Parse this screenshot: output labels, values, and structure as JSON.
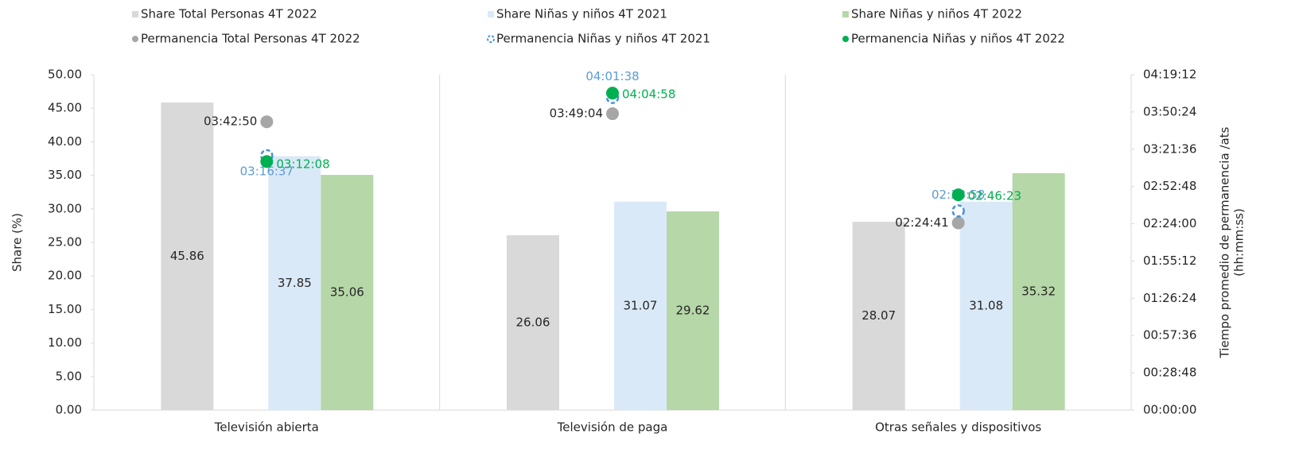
{
  "chart_data": {
    "type": "bar",
    "categories": [
      "Televisión abierta",
      "Televisión de paga",
      "Otras señales y dispositivos"
    ],
    "series": [
      {
        "name": "Share Total Personas 4T 2022",
        "type": "bar",
        "color": "#d9d9d9",
        "values": [
          45.86,
          26.06,
          28.07
        ]
      },
      {
        "name": "Share Niñas y niños 4T 2021",
        "type": "bar",
        "color": "#dae9f7",
        "values": [
          37.85,
          31.07,
          31.08
        ]
      },
      {
        "name": "Share Niñas y niños 4T 2022",
        "type": "bar",
        "color": "#b6d7a8",
        "values": [
          35.06,
          29.62,
          35.32
        ]
      },
      {
        "name": "Permanencia Total Personas 4T 2022",
        "type": "scatter",
        "axis": "y2",
        "color": "#a6a6a6",
        "label_color": "#262626",
        "values": [
          13370,
          13744,
          8681
        ],
        "value_labels": [
          "03:42:50",
          "03:49:04",
          "02:24:41"
        ]
      },
      {
        "name": "Permanencia Niñas y niños 4T 2021",
        "type": "scatter",
        "axis": "y2",
        "color": "#4a90d9",
        "dashed": true,
        "label_color": "#5b9bd5",
        "values": [
          11797,
          14498,
          9238
        ],
        "value_labels": [
          "03:16:37",
          "04:01:38",
          "02:33:58"
        ]
      },
      {
        "name": "Permanencia Niñas y niños 4T 2022",
        "type": "scatter",
        "axis": "y2",
        "color": "#00b050",
        "label_color": "#00b050",
        "values": [
          11528,
          14698,
          9983
        ],
        "value_labels": [
          "03:12:08",
          "04:04:58",
          "02:46:23"
        ]
      }
    ],
    "ylabel": "Share (%)",
    "y2label": [
      "Tiempo promedio de permanencia /ats",
      "(hh:mm:ss)"
    ],
    "ylim": [
      0,
      50
    ],
    "yticks": [
      {
        "value": 0,
        "label": "0.00"
      },
      {
        "value": 5,
        "label": "5.00"
      },
      {
        "value": 10,
        "label": "10.00"
      },
      {
        "value": 15,
        "label": "15.00"
      },
      {
        "value": 20,
        "label": "20.00"
      },
      {
        "value": 25,
        "label": "25.00"
      },
      {
        "value": 30,
        "label": "30.00"
      },
      {
        "value": 35,
        "label": "35.00"
      },
      {
        "value": 40,
        "label": "40.00"
      },
      {
        "value": 45,
        "label": "45.00"
      },
      {
        "value": 50,
        "label": "50.00"
      }
    ],
    "y2lim": [
      0,
      15552
    ],
    "y2ticks": [
      {
        "value": 0,
        "label": "00:00:00"
      },
      {
        "value": 1728,
        "label": "00:28:48"
      },
      {
        "value": 3456,
        "label": "00:57:36"
      },
      {
        "value": 5184,
        "label": "01:26:24"
      },
      {
        "value": 6912,
        "label": "01:55:12"
      },
      {
        "value": 8640,
        "label": "02:24:00"
      },
      {
        "value": 10368,
        "label": "02:52:48"
      },
      {
        "value": 12096,
        "label": "03:21:36"
      },
      {
        "value": 13824,
        "label": "03:50:24"
      },
      {
        "value": 15552,
        "label": "04:19:12"
      }
    ],
    "grid": false,
    "legend": "top"
  }
}
